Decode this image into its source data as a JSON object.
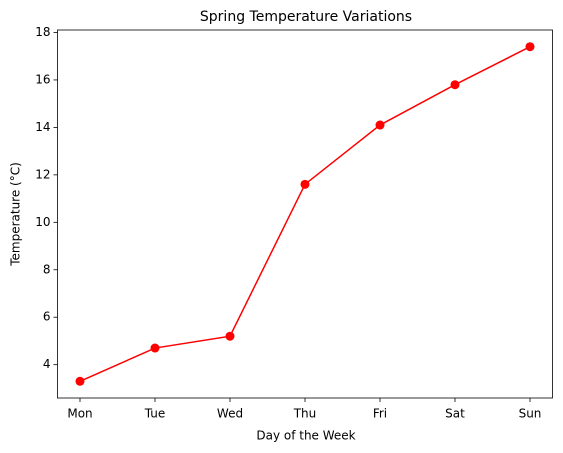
{
  "chart_data": {
    "type": "line",
    "title": "Spring Temperature Variations",
    "x_label": "Day of the Week",
    "y_label": "Temperature (°C)",
    "categories": [
      "Mon",
      "Tue",
      "Wed",
      "Thu",
      "Fri",
      "Sat",
      "Sun"
    ],
    "values": [
      3.3,
      4.7,
      5.2,
      11.6,
      14.1,
      15.8,
      17.4
    ],
    "color": "#ff0000",
    "marker": true,
    "ylim": [
      2.595,
      18.105
    ],
    "yticks": [
      4,
      6,
      8,
      10,
      12,
      14,
      16,
      18
    ],
    "grid": false
  }
}
